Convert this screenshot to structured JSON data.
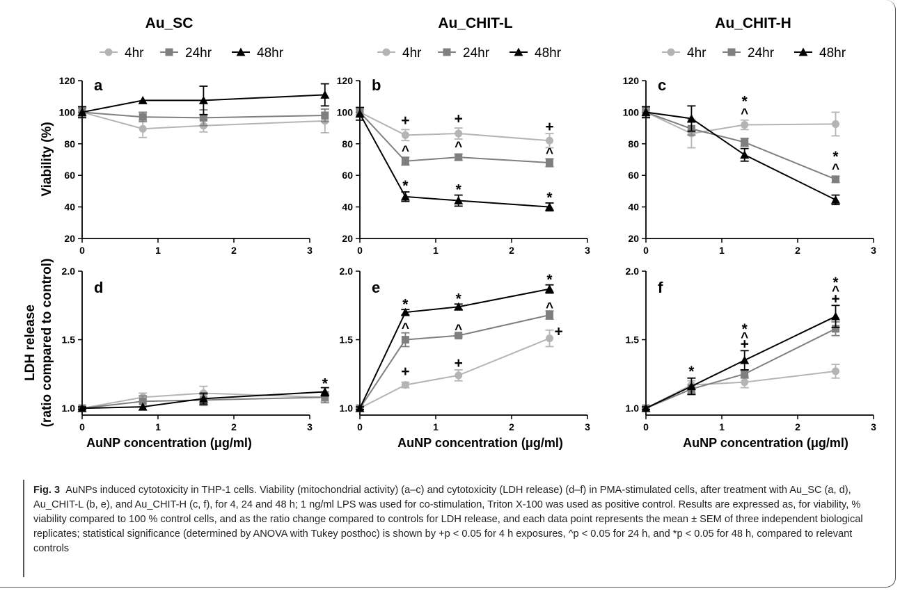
{
  "figure": {
    "caption_label": "Fig. 3",
    "caption_text": "AuNPs induced cytotoxicity in THP-1 cells. Viability (mitochondrial activity) (a–c) and cytotoxicity (LDH release) (d–f) in PMA-stimulated cells, after treatment with Au_SC (a, d), Au_CHIT-L (b, e), and Au_CHIT-H (c, f), for 4, 24 and 48 h; 1 ng/ml LPS was used for co-stimulation, Triton X-100 was used as positive control. Results are expressed as, for viability, % viability compared to 100 % control cells, and as the ratio change compared to controls for LDH release, and each data point represents the mean ± SEM of three independent biological replicates; statistical significance (determined by ANOVA with Tukey posthoc) is shown by +p < 0.05 for 4 h exposures, ^p < 0.05 for 24 h, and *p < 0.05 for 48 h, compared to relevant controls"
  },
  "colors": {
    "h4": "#b4b4b4",
    "h24": "#7f7f7f",
    "h48": "#000000"
  },
  "column_titles": [
    "Au_SC",
    "Au_CHIT-L",
    "Au_CHIT-H"
  ],
  "legend": [
    "4hr",
    "24hr",
    "48hr"
  ],
  "ylabel_top": "Viability (%)",
  "ylabel_bottom_1": "LDH release",
  "ylabel_bottom_2": "(ratio compared to control)",
  "xlabel": "AuNP concentration (μg/ml)",
  "chart_data": [
    {
      "panel": "a",
      "type": "line",
      "column_title": "Au_SC",
      "xlim": [
        0,
        3
      ],
      "ylim": [
        20,
        120
      ],
      "xticks": [
        0,
        1,
        2,
        3
      ],
      "yticks": [
        20,
        40,
        60,
        80,
        100,
        120
      ],
      "series": [
        {
          "name": "4hr",
          "x": [
            0,
            0.8,
            1.6,
            3.2
          ],
          "y": [
            100,
            89.5,
            91.5,
            94.5
          ],
          "err": [
            3,
            5.5,
            4,
            7.5
          ]
        },
        {
          "name": "24hr",
          "x": [
            0,
            0.8,
            1.6,
            3.2
          ],
          "y": [
            100,
            97,
            96.5,
            98
          ],
          "err": [
            2.5,
            3,
            5,
            4
          ]
        },
        {
          "name": "48hr",
          "x": [
            0,
            0.8,
            1.6,
            3.2
          ],
          "y": [
            100,
            107.5,
            107.5,
            111
          ],
          "err": [
            3.5,
            0,
            9,
            7
          ]
        }
      ],
      "annotations": []
    },
    {
      "panel": "b",
      "type": "line",
      "column_title": "Au_CHIT-L",
      "xlim": [
        0,
        3
      ],
      "ylim": [
        20,
        120
      ],
      "xticks": [
        0,
        1,
        2,
        3
      ],
      "yticks": [
        20,
        40,
        60,
        80,
        100,
        120
      ],
      "series": [
        {
          "name": "4hr",
          "x": [
            0,
            0.6,
            1.3,
            2.5
          ],
          "y": [
            100,
            85.5,
            86.5,
            82
          ],
          "err": [
            2,
            3.5,
            3.5,
            4.5
          ]
        },
        {
          "name": "24hr",
          "x": [
            0,
            0.6,
            1.3,
            2.5
          ],
          "y": [
            100,
            69,
            71.5,
            68
          ],
          "err": [
            3,
            2.5,
            2,
            2.5
          ]
        },
        {
          "name": "48hr",
          "x": [
            0,
            0.6,
            1.3,
            2.5
          ],
          "y": [
            99,
            46.5,
            44,
            40
          ],
          "err": [
            4,
            3,
            3.5,
            2.5
          ]
        }
      ],
      "annotations": [
        {
          "text": "+",
          "x": 0.6,
          "y": 95
        },
        {
          "text": "+",
          "x": 1.3,
          "y": 96
        },
        {
          "text": "+",
          "x": 2.5,
          "y": 91
        },
        {
          "text": "^",
          "x": 0.6,
          "y": 76
        },
        {
          "text": "^",
          "x": 1.3,
          "y": 78.5
        },
        {
          "text": "^",
          "x": 2.5,
          "y": 74.5
        },
        {
          "text": "*",
          "x": 0.6,
          "y": 53.5
        },
        {
          "text": "*",
          "x": 1.3,
          "y": 51
        },
        {
          "text": "*",
          "x": 2.5,
          "y": 46
        }
      ]
    },
    {
      "panel": "c",
      "type": "line",
      "column_title": "Au_CHIT-H",
      "xlim": [
        0,
        3
      ],
      "ylim": [
        20,
        120
      ],
      "xticks": [
        0,
        1,
        2,
        3
      ],
      "yticks": [
        20,
        40,
        60,
        80,
        100,
        120
      ],
      "series": [
        {
          "name": "4hr",
          "x": [
            0,
            0.6,
            1.3,
            2.5
          ],
          "y": [
            100,
            86.5,
            92,
            92.5
          ],
          "err": [
            2,
            9,
            3,
            7.5
          ]
        },
        {
          "name": "24hr",
          "x": [
            0,
            0.6,
            1.3,
            2.5
          ],
          "y": [
            100,
            89.5,
            81,
            57.5
          ],
          "err": [
            3,
            4,
            2.5,
            2
          ]
        },
        {
          "name": "48hr",
          "x": [
            0,
            0.6,
            1.3,
            2.5
          ],
          "y": [
            100,
            96,
            73,
            44.5
          ],
          "err": [
            3.5,
            8,
            4,
            3
          ]
        }
      ],
      "annotations": [
        {
          "text": "^",
          "x": 1.3,
          "y": 99.5
        },
        {
          "text": "*",
          "x": 1.3,
          "y": 107
        },
        {
          "text": "^",
          "x": 2.5,
          "y": 64.5
        },
        {
          "text": "*",
          "x": 2.5,
          "y": 72
        }
      ]
    },
    {
      "panel": "d",
      "type": "line",
      "xlim": [
        0,
        3
      ],
      "ylim": [
        0.95,
        2.0
      ],
      "xticks": [
        0,
        1,
        2,
        3
      ],
      "yticks": [
        1.0,
        1.5,
        2.0
      ],
      "series": [
        {
          "name": "4hr",
          "x": [
            0,
            0.8,
            1.6,
            3.2
          ],
          "y": [
            1.0,
            1.08,
            1.11,
            1.08
          ],
          "err": [
            0.01,
            0.03,
            0.05,
            0.03
          ]
        },
        {
          "name": "24hr",
          "x": [
            0,
            0.8,
            1.6,
            3.2
          ],
          "y": [
            1.0,
            1.05,
            1.06,
            1.08
          ],
          "err": [
            0.01,
            0.04,
            0.04,
            0.04
          ]
        },
        {
          "name": "48hr",
          "x": [
            0,
            0.8,
            1.6,
            3.2
          ],
          "y": [
            1.0,
            1.01,
            1.07,
            1.12
          ],
          "err": [
            0.01,
            0.0,
            0.04,
            0.03
          ]
        }
      ],
      "annotations": [
        {
          "text": "*",
          "x": 3.2,
          "y": 1.18
        }
      ]
    },
    {
      "panel": "e",
      "type": "line",
      "xlim": [
        0,
        3
      ],
      "ylim": [
        0.95,
        2.0
      ],
      "xticks": [
        0,
        1,
        2,
        3
      ],
      "yticks": [
        1.0,
        1.5,
        2.0
      ],
      "series": [
        {
          "name": "4hr",
          "x": [
            0,
            0.6,
            1.3,
            2.5
          ],
          "y": [
            1.0,
            1.17,
            1.24,
            1.51
          ],
          "err": [
            0.01,
            0.02,
            0.04,
            0.06
          ]
        },
        {
          "name": "24hr",
          "x": [
            0,
            0.6,
            1.3,
            2.5
          ],
          "y": [
            1.0,
            1.5,
            1.53,
            1.68
          ],
          "err": [
            0.01,
            0.05,
            0.01,
            0.03
          ]
        },
        {
          "name": "48hr",
          "x": [
            0,
            0.6,
            1.3,
            2.5
          ],
          "y": [
            1.0,
            1.7,
            1.74,
            1.87
          ],
          "err": [
            0.01,
            0.02,
            0.02,
            0.03
          ]
        }
      ],
      "annotations": [
        {
          "text": "+",
          "x": 0.6,
          "y": 1.27
        },
        {
          "text": "+",
          "x": 1.3,
          "y": 1.33
        },
        {
          "text": "+",
          "x": 2.62,
          "y": 1.56
        },
        {
          "text": "^",
          "x": 0.6,
          "y": 1.59
        },
        {
          "text": "^",
          "x": 1.3,
          "y": 1.58
        },
        {
          "text": "^",
          "x": 2.5,
          "y": 1.74
        },
        {
          "text": "*",
          "x": 0.6,
          "y": 1.76
        },
        {
          "text": "*",
          "x": 1.3,
          "y": 1.8
        },
        {
          "text": "*",
          "x": 2.5,
          "y": 1.94
        }
      ]
    },
    {
      "panel": "f",
      "type": "line",
      "xlim": [
        0,
        3
      ],
      "ylim": [
        0.95,
        2.0
      ],
      "xticks": [
        0,
        1,
        2,
        3
      ],
      "yticks": [
        1.0,
        1.5,
        2.0
      ],
      "series": [
        {
          "name": "4hr",
          "x": [
            0,
            0.6,
            1.3,
            2.5
          ],
          "y": [
            1.0,
            1.17,
            1.19,
            1.27
          ],
          "err": [
            0.01,
            0.03,
            0.04,
            0.05
          ]
        },
        {
          "name": "24hr",
          "x": [
            0,
            0.6,
            1.3,
            2.5
          ],
          "y": [
            1.0,
            1.14,
            1.25,
            1.58
          ],
          "err": [
            0.01,
            0.03,
            0.03,
            0.05
          ]
        },
        {
          "name": "48hr",
          "x": [
            0,
            0.6,
            1.3,
            2.5
          ],
          "y": [
            1.0,
            1.16,
            1.35,
            1.67
          ],
          "err": [
            0.01,
            0.06,
            0.07,
            0.08
          ]
        }
      ],
      "annotations": [
        {
          "text": "*",
          "x": 0.6,
          "y": 1.27
        },
        {
          "text": "+",
          "x": 1.3,
          "y": 1.47
        },
        {
          "text": "^",
          "x": 1.3,
          "y": 1.52
        },
        {
          "text": "*",
          "x": 1.3,
          "y": 1.58
        },
        {
          "text": "+",
          "x": 2.5,
          "y": 1.8
        },
        {
          "text": "^",
          "x": 2.5,
          "y": 1.86
        },
        {
          "text": "*",
          "x": 2.5,
          "y": 1.92
        }
      ]
    }
  ]
}
